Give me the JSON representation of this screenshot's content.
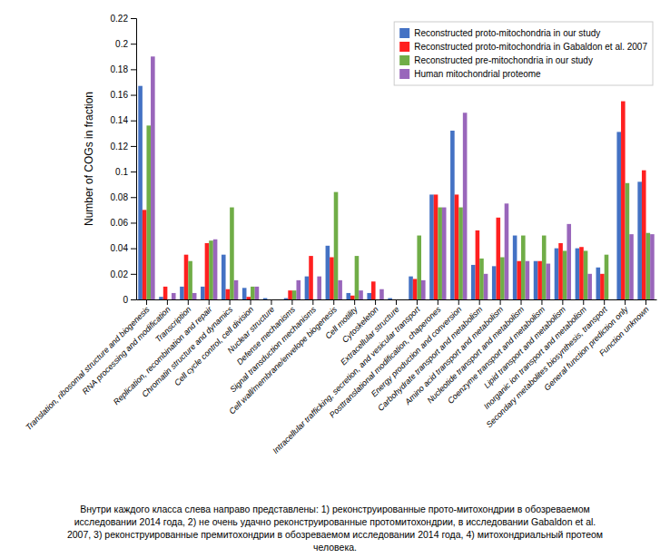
{
  "chart_data": {
    "type": "bar",
    "ylabel": "Number of COGs in fraction",
    "categories": [
      "Translation, ribosomal structure and biogenesis",
      "RNA processing and modification",
      "Transcription",
      "Replication, recombination and repair",
      "Chromatin structure and dynamics",
      "Cell cycle control, cell division",
      "Nuclear structure",
      "Defense mechanisms",
      "Signal transduction mechanisms",
      "Cell wall/membrane/envelope biogenesis",
      "Cell motility",
      "Cytoskeleton",
      "Extracellular structure",
      "Intracellular trafficking, secretion, and vesicular transport",
      "Posttranslational modification, chaperones",
      "Energy production and conversion",
      "Carbohydrate transport and metabolism",
      "Amino acid transport and metabolism",
      "Nucleotide transport and metabolism",
      "Coenzyme transport and metabolism",
      "Lipid transport and metabolism",
      "Inorganic ion transport and metabolism",
      "Secondary metabolites biosynthesis, transport",
      "General function prediction only",
      "Function unknown"
    ],
    "series": [
      {
        "name": "Reconstructed proto-mitochondria in our study",
        "color": "#4472C4",
        "values": [
          0.167,
          0.002,
          0.01,
          0.01,
          0.035,
          0.009,
          0.001,
          0.001,
          0.018,
          0.042,
          0.005,
          0.005,
          0.001,
          0.018,
          0.082,
          0.132,
          0.027,
          0.026,
          0.05,
          0.03,
          0.04,
          0.04,
          0.025,
          0.131,
          0.092
        ]
      },
      {
        "name": "Reconstructed proto-mitochondria in Gabaldon et al. 2007",
        "color": "#FF2020",
        "values": [
          0.07,
          0.01,
          0.035,
          0.044,
          0.008,
          0.002,
          0.0,
          0.007,
          0.034,
          0.033,
          0.003,
          0.014,
          0.0,
          0.016,
          0.082,
          0.082,
          0.054,
          0.064,
          0.03,
          0.03,
          0.044,
          0.041,
          0.02,
          0.155,
          0.101
        ]
      },
      {
        "name": "Reconstructed pre-mitochondria in our study",
        "color": "#70AD47",
        "values": [
          0.136,
          0.0,
          0.03,
          0.046,
          0.072,
          0.01,
          0.0,
          0.007,
          0.0,
          0.084,
          0.034,
          0.0,
          0.0,
          0.05,
          0.072,
          0.072,
          0.032,
          0.033,
          0.05,
          0.05,
          0.038,
          0.038,
          0.035,
          0.091,
          0.052
        ]
      },
      {
        "name": "Human mitochondrial proteome",
        "color": "#9966BB",
        "values": [
          0.19,
          0.005,
          0.005,
          0.047,
          0.015,
          0.01,
          0.0,
          0.015,
          0.018,
          0.015,
          0.007,
          0.008,
          0.0,
          0.015,
          0.072,
          0.146,
          0.02,
          0.075,
          0.03,
          0.028,
          0.059,
          0.02,
          0.0,
          0.051,
          0.051
        ]
      }
    ],
    "ylim": [
      0,
      0.22
    ],
    "yticks": [
      0,
      0.02,
      0.04,
      0.06,
      0.08,
      0.1,
      0.12,
      0.14,
      0.16,
      0.18,
      0.2,
      0.22
    ],
    "grid": false,
    "legend": "upper right",
    "annotations": [
      "Внутри каждого класса слева направо представлены: 1) реконструированные прото-митохондрии в обозреваемом",
      "исследовании 2014 года, 2) не очень удачно реконструированные протомитохондрии, в исследовании Gabaldon et al.",
      "2007, 3) реконструированные премитохондрии в обозреваемом исследовании 2014 года, 4) митохондриальный протеом",
      "человека."
    ]
  }
}
